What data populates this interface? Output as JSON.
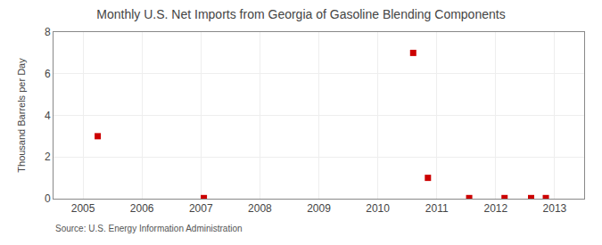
{
  "chart_data": {
    "type": "scatter",
    "title": "Monthly U.S. Net Imports from Georgia of Gasoline Blending Components",
    "ylabel": "Thousand Barrels per Day",
    "source": "Source: U.S. Energy Information Administration",
    "x": [
      2005.25,
      2007.05,
      2010.6,
      2010.85,
      2011.55,
      2012.15,
      2012.6,
      2012.85
    ],
    "values": [
      3.0,
      0.03,
      7.0,
      1.0,
      0.03,
      0.03,
      0.03,
      0.03
    ],
    "color": "#cc0000",
    "marker": "square",
    "xlim": [
      2004.5,
      2013.5
    ],
    "xticks": [
      2005,
      2006,
      2007,
      2008,
      2009,
      2010,
      2011,
      2012,
      2013
    ],
    "ylim": [
      0,
      8
    ],
    "yticks": [
      0,
      2,
      4,
      6,
      8
    ],
    "grid": true
  }
}
